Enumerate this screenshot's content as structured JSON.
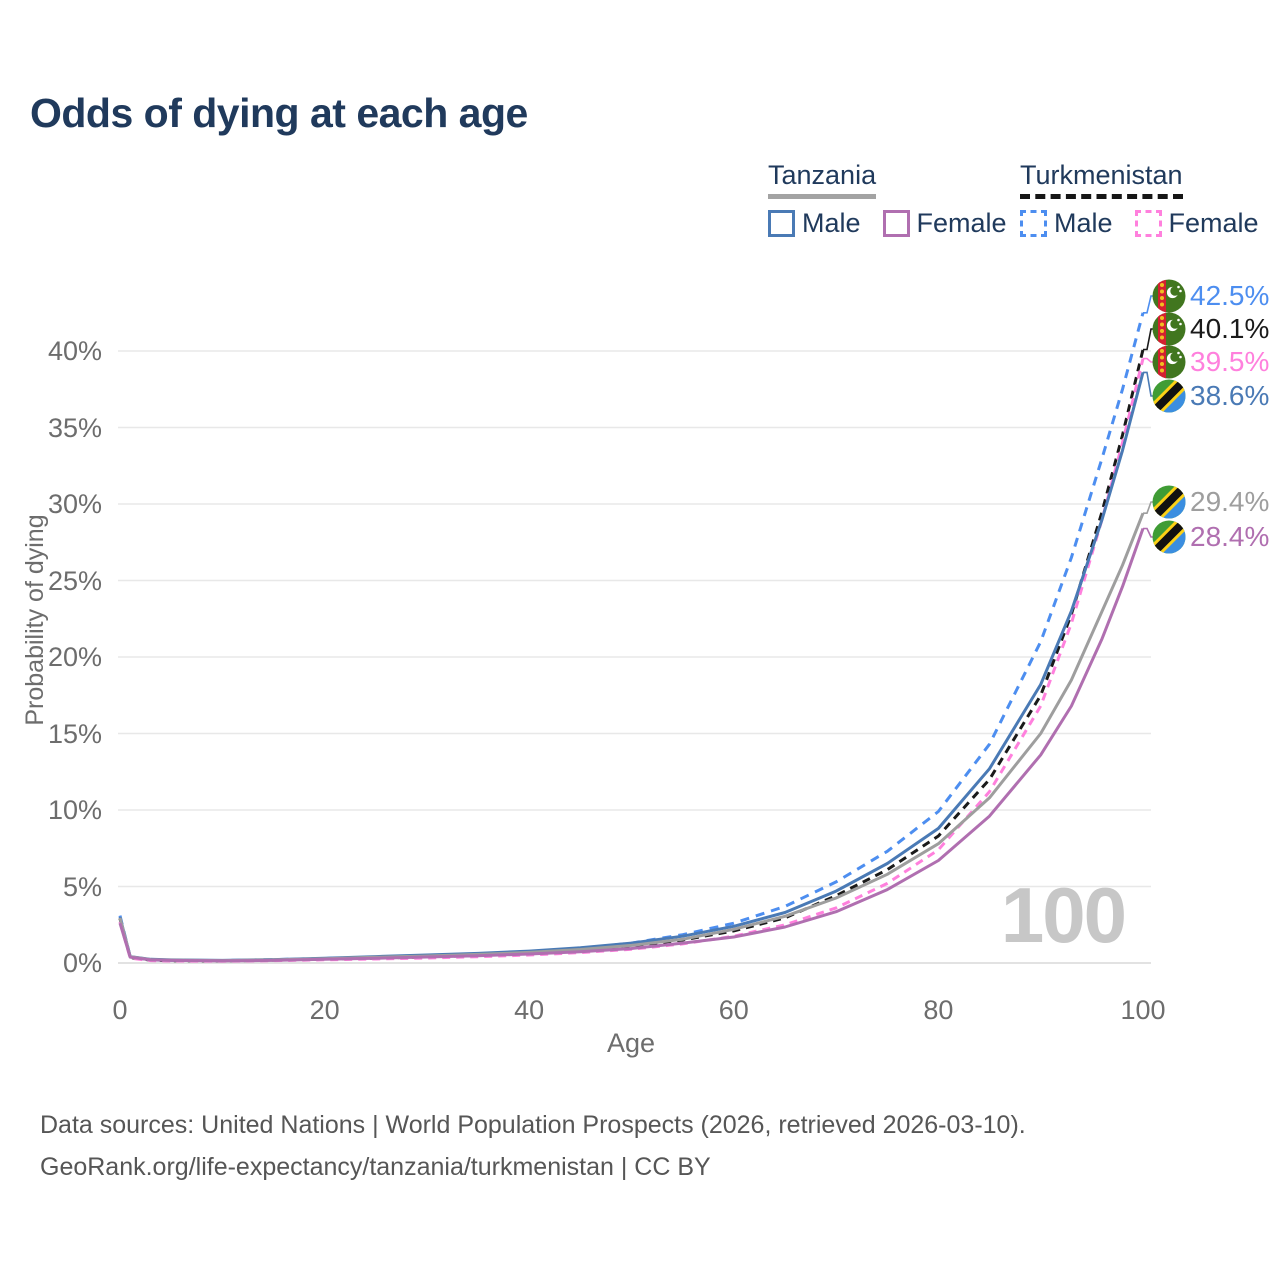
{
  "title": "Odds of dying at each age",
  "watermark_age": "100",
  "legend": {
    "groups": [
      {
        "country": "Tanzania",
        "line_style": "solid",
        "country_line_color": "#a3a3a3",
        "items": [
          {
            "label": "Male",
            "color": "#4a7ab5"
          },
          {
            "label": "Female",
            "color": "#b06fb0"
          }
        ]
      },
      {
        "country": "Turkmenistan",
        "line_style": "dashed",
        "country_line_color": "#161616",
        "items": [
          {
            "label": "Male",
            "color": "#4d8ef0"
          },
          {
            "label": "Female",
            "color": "#ff80dd"
          }
        ]
      }
    ]
  },
  "axes": {
    "x": {
      "label": "Age",
      "tick_values": [
        0,
        20,
        40,
        60,
        80,
        100
      ],
      "tick_labels": [
        "0",
        "20",
        "40",
        "60",
        "80",
        "100"
      ],
      "range": [
        0,
        100
      ]
    },
    "y": {
      "label": "Probability of dying",
      "tick_values": [
        0,
        5,
        10,
        15,
        20,
        25,
        30,
        35,
        40
      ],
      "tick_labels": [
        "0%",
        "5%",
        "10%",
        "15%",
        "20%",
        "25%",
        "30%",
        "35%",
        "40%"
      ],
      "range_percent": [
        0,
        45
      ]
    }
  },
  "footer": {
    "line1": "Data sources: United Nations | World Population Prospects (2026, retrieved 2026-03-10).",
    "line2": "GeoRank.org/life-expectancy/tanzania/turkmenistan | CC BY"
  },
  "chart_data": {
    "type": "line",
    "title": "Odds of dying at each age",
    "xlabel": "Age",
    "ylabel": "Probability of dying",
    "xlim": [
      0,
      100
    ],
    "ylim_percent": [
      0,
      45
    ],
    "grid": "horizontal",
    "legend_position": "top-right",
    "series": [
      {
        "name": "Turkmenistan — Male",
        "country": "Turkmenistan",
        "sex": "Male",
        "color": "#4d8ef0",
        "dash": "9 7",
        "flag": "turkmenistan",
        "end_label": "42.5%",
        "points": [
          [
            0,
            3.1
          ],
          [
            1,
            0.4
          ],
          [
            3,
            0.2
          ],
          [
            5,
            0.17
          ],
          [
            10,
            0.16
          ],
          [
            15,
            0.22
          ],
          [
            20,
            0.3
          ],
          [
            25,
            0.37
          ],
          [
            30,
            0.46
          ],
          [
            35,
            0.57
          ],
          [
            40,
            0.72
          ],
          [
            45,
            0.95
          ],
          [
            50,
            1.3
          ],
          [
            55,
            1.85
          ],
          [
            60,
            2.6
          ],
          [
            65,
            3.7
          ],
          [
            70,
            5.3
          ],
          [
            75,
            7.3
          ],
          [
            80,
            9.9
          ],
          [
            85,
            14.3
          ],
          [
            90,
            21.0
          ],
          [
            93,
            26.5
          ],
          [
            96,
            33.0
          ],
          [
            98,
            37.5
          ],
          [
            100,
            42.5
          ]
        ]
      },
      {
        "name": "Turkmenistan — Both sexes",
        "country": "Turkmenistan",
        "sex": "Both",
        "color": "#1a1a1a",
        "dash": "8 6",
        "flag": "turkmenistan",
        "end_label": "40.1%",
        "points": [
          [
            0,
            2.9
          ],
          [
            1,
            0.36
          ],
          [
            3,
            0.18
          ],
          [
            5,
            0.15
          ],
          [
            10,
            0.14
          ],
          [
            15,
            0.19
          ],
          [
            20,
            0.26
          ],
          [
            25,
            0.32
          ],
          [
            30,
            0.4
          ],
          [
            35,
            0.49
          ],
          [
            40,
            0.62
          ],
          [
            45,
            0.82
          ],
          [
            50,
            1.1
          ],
          [
            55,
            1.5
          ],
          [
            60,
            2.1
          ],
          [
            65,
            2.95
          ],
          [
            70,
            4.4
          ],
          [
            75,
            6.1
          ],
          [
            80,
            8.3
          ],
          [
            85,
            12.0
          ],
          [
            90,
            17.5
          ],
          [
            93,
            22.8
          ],
          [
            96,
            29.5
          ],
          [
            98,
            34.5
          ],
          [
            100,
            40.1
          ]
        ]
      },
      {
        "name": "Turkmenistan — Female",
        "country": "Turkmenistan",
        "sex": "Female",
        "color": "#ff80dd",
        "dash": "8 6",
        "flag": "turkmenistan",
        "end_label": "39.5%",
        "points": [
          [
            0,
            2.7
          ],
          [
            1,
            0.32
          ],
          [
            3,
            0.16
          ],
          [
            5,
            0.13
          ],
          [
            10,
            0.12
          ],
          [
            15,
            0.15
          ],
          [
            20,
            0.21
          ],
          [
            25,
            0.26
          ],
          [
            30,
            0.33
          ],
          [
            35,
            0.41
          ],
          [
            40,
            0.52
          ],
          [
            45,
            0.68
          ],
          [
            50,
            0.9
          ],
          [
            55,
            1.25
          ],
          [
            60,
            1.75
          ],
          [
            65,
            2.5
          ],
          [
            70,
            3.6
          ],
          [
            75,
            5.2
          ],
          [
            80,
            7.4
          ],
          [
            85,
            11.2
          ],
          [
            90,
            16.8
          ],
          [
            93,
            22.2
          ],
          [
            96,
            29.0
          ],
          [
            98,
            34.0
          ],
          [
            100,
            39.5
          ]
        ]
      },
      {
        "name": "Tanzania — Male",
        "country": "Tanzania",
        "sex": "Male",
        "color": "#4a7ab5",
        "dash": null,
        "flag": "tanzania",
        "end_label": "38.6%",
        "points": [
          [
            0,
            3.0
          ],
          [
            1,
            0.42
          ],
          [
            3,
            0.24
          ],
          [
            5,
            0.2
          ],
          [
            10,
            0.17
          ],
          [
            15,
            0.22
          ],
          [
            20,
            0.31
          ],
          [
            25,
            0.42
          ],
          [
            30,
            0.52
          ],
          [
            35,
            0.63
          ],
          [
            40,
            0.78
          ],
          [
            45,
            1.0
          ],
          [
            50,
            1.3
          ],
          [
            55,
            1.75
          ],
          [
            60,
            2.4
          ],
          [
            65,
            3.3
          ],
          [
            70,
            4.7
          ],
          [
            75,
            6.5
          ],
          [
            80,
            8.8
          ],
          [
            85,
            12.7
          ],
          [
            90,
            18.2
          ],
          [
            93,
            23.0
          ],
          [
            96,
            29.0
          ],
          [
            98,
            33.5
          ],
          [
            100,
            38.6
          ]
        ]
      },
      {
        "name": "Tanzania — Both sexes",
        "country": "Tanzania",
        "sex": "Both",
        "color": "#9e9e9e",
        "dash": null,
        "flag": "tanzania",
        "end_label": "29.4%",
        "points": [
          [
            0,
            2.95
          ],
          [
            1,
            0.41
          ],
          [
            3,
            0.22
          ],
          [
            5,
            0.19
          ],
          [
            10,
            0.16
          ],
          [
            15,
            0.2
          ],
          [
            20,
            0.28
          ],
          [
            25,
            0.37
          ],
          [
            30,
            0.46
          ],
          [
            35,
            0.56
          ],
          [
            40,
            0.69
          ],
          [
            45,
            0.88
          ],
          [
            50,
            1.15
          ],
          [
            55,
            1.55
          ],
          [
            60,
            2.2
          ],
          [
            65,
            3.05
          ],
          [
            70,
            4.25
          ],
          [
            75,
            5.8
          ],
          [
            80,
            7.8
          ],
          [
            85,
            10.8
          ],
          [
            90,
            15.0
          ],
          [
            93,
            18.5
          ],
          [
            96,
            23.0
          ],
          [
            98,
            26.0
          ],
          [
            100,
            29.4
          ]
        ]
      },
      {
        "name": "Tanzania — Female",
        "country": "Tanzania",
        "sex": "Female",
        "color": "#b06fb0",
        "dash": null,
        "flag": "tanzania",
        "end_label": "28.4%",
        "points": [
          [
            0,
            2.6
          ],
          [
            1,
            0.38
          ],
          [
            3,
            0.2
          ],
          [
            5,
            0.17
          ],
          [
            10,
            0.14
          ],
          [
            15,
            0.17
          ],
          [
            20,
            0.24
          ],
          [
            25,
            0.31
          ],
          [
            30,
            0.39
          ],
          [
            35,
            0.48
          ],
          [
            40,
            0.59
          ],
          [
            45,
            0.74
          ],
          [
            50,
            0.95
          ],
          [
            55,
            1.3
          ],
          [
            60,
            1.7
          ],
          [
            65,
            2.35
          ],
          [
            70,
            3.35
          ],
          [
            75,
            4.8
          ],
          [
            80,
            6.7
          ],
          [
            85,
            9.6
          ],
          [
            90,
            13.6
          ],
          [
            93,
            16.8
          ],
          [
            96,
            21.2
          ],
          [
            98,
            24.6
          ],
          [
            100,
            28.4
          ]
        ]
      }
    ]
  }
}
